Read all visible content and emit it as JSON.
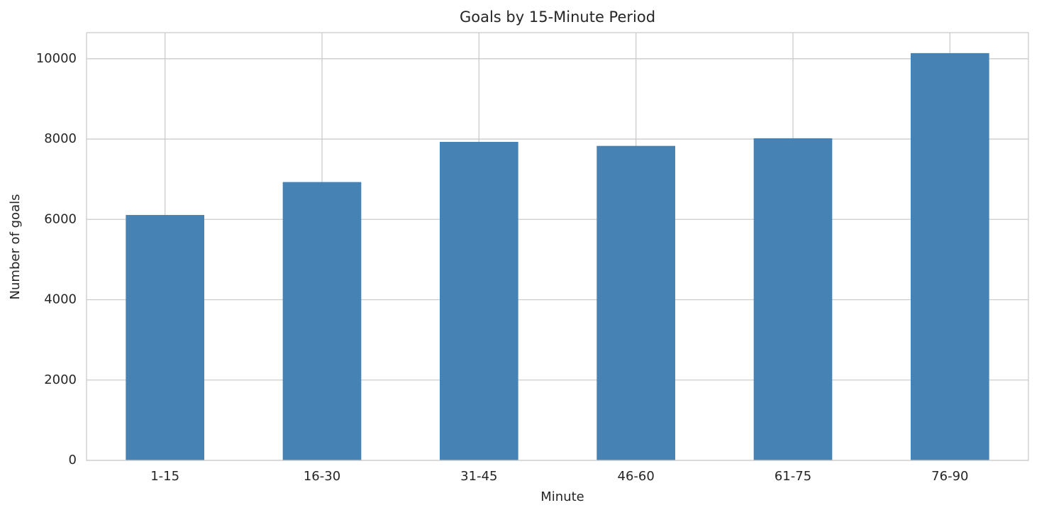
{
  "chart_data": {
    "type": "bar",
    "title": "Goals by 15-Minute Period",
    "x_label": "Minute",
    "y_label": "Number of goals",
    "categories": [
      "1-15",
      "16-30",
      "31-45",
      "46-60",
      "61-75",
      "76-90"
    ],
    "values": [
      6110,
      6930,
      7930,
      7830,
      8020,
      10140
    ],
    "color": "#4682b4",
    "ylim": [
      0,
      10650
    ],
    "yticks": [
      0,
      2000,
      4000,
      6000,
      8000,
      10000
    ],
    "grid": true
  }
}
